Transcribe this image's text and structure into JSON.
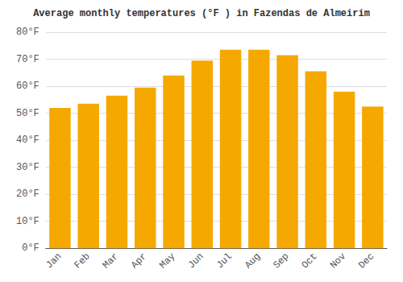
{
  "chart_data": {
    "type": "bar",
    "title": "Average monthly temperatures (°F ) in Fazendas de Almeirim",
    "categories": [
      "Jan",
      "Feb",
      "Mar",
      "Apr",
      "May",
      "Jun",
      "Jul",
      "Aug",
      "Sep",
      "Oct",
      "Nov",
      "Dec"
    ],
    "values": [
      52,
      53.5,
      56.5,
      59.5,
      64,
      69.5,
      73.5,
      73.5,
      71.5,
      65.5,
      58,
      52.5
    ],
    "color": "#F5A800",
    "ylim": [
      0,
      80
    ],
    "yticks": [
      {
        "value": 0,
        "label": "0°F"
      },
      {
        "value": 10,
        "label": "10°F"
      },
      {
        "value": 20,
        "label": "20°F"
      },
      {
        "value": 30,
        "label": "30°F"
      },
      {
        "value": 40,
        "label": "40°F"
      },
      {
        "value": 50,
        "label": "50°F"
      },
      {
        "value": 60,
        "label": "60°F"
      },
      {
        "value": 70,
        "label": "70°F"
      },
      {
        "value": 80,
        "label": "80°F"
      }
    ],
    "grid": true
  }
}
